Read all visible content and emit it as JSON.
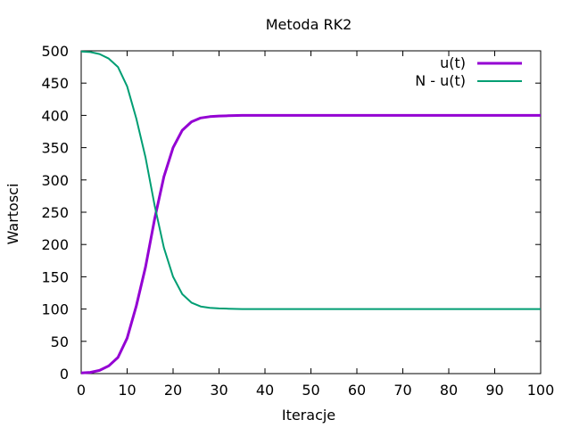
{
  "chart_data": {
    "type": "line",
    "title": "Metoda RK2",
    "xlabel": "Iteracje",
    "ylabel": "Wartosci",
    "xlim": [
      0,
      100
    ],
    "ylim": [
      0,
      500
    ],
    "xticks": [
      0,
      10,
      20,
      30,
      40,
      50,
      60,
      70,
      80,
      90,
      100
    ],
    "yticks": [
      0,
      50,
      100,
      150,
      200,
      250,
      300,
      350,
      400,
      450,
      500
    ],
    "grid": false,
    "legend_position": "top-right",
    "series": [
      {
        "name": "u(t)",
        "color": "#9400d3",
        "x": [
          0,
          2,
          4,
          6,
          8,
          10,
          12,
          14,
          16,
          18,
          20,
          22,
          24,
          26,
          28,
          30,
          32,
          35,
          40,
          50,
          60,
          70,
          80,
          90,
          100
        ],
        "values": [
          1,
          2,
          5,
          12,
          25,
          55,
          105,
          165,
          240,
          305,
          350,
          377,
          390,
          396,
          398,
          399,
          399.5,
          400,
          400,
          400,
          400,
          400,
          400,
          400,
          400
        ]
      },
      {
        "name": "N - u(t)",
        "color": "#009e73",
        "x": [
          0,
          2,
          4,
          6,
          8,
          10,
          12,
          14,
          16,
          18,
          20,
          22,
          24,
          26,
          28,
          30,
          32,
          35,
          40,
          50,
          60,
          70,
          80,
          90,
          100
        ],
        "values": [
          499,
          498,
          495,
          488,
          475,
          445,
          395,
          335,
          260,
          195,
          150,
          123,
          110,
          104,
          102,
          101,
          100.5,
          100,
          100,
          100,
          100,
          100,
          100,
          100,
          100
        ]
      }
    ]
  }
}
